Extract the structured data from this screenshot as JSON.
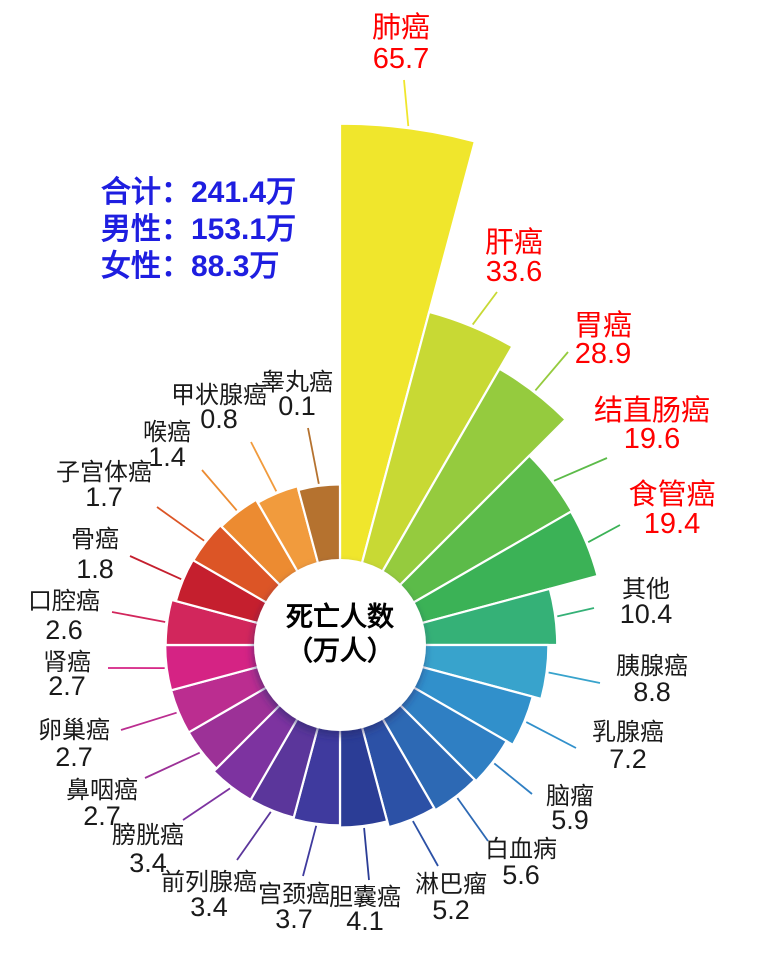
{
  "chart_data": {
    "type": "pie",
    "variant": "nightingale-rose",
    "title": "死亡人数（万人）",
    "center_label_lines": [
      "死亡人数",
      "（万人）"
    ],
    "unit": "万人",
    "legend_position": "none",
    "grid": false,
    "start_angle_deg": 0,
    "wedge_angle_deg": 15,
    "categories": [
      "肺癌",
      "肝癌",
      "胃癌",
      "结直肠癌",
      "食管癌",
      "其他",
      "胰腺癌",
      "乳腺癌",
      "脑瘤",
      "白血病",
      "淋巴瘤",
      "胆囊癌",
      "宫颈癌",
      "前列腺癌",
      "膀胱癌",
      "鼻咽癌",
      "卵巢癌",
      "肾癌",
      "口腔癌",
      "骨癌",
      "子宫体癌",
      "喉癌",
      "甲状腺癌",
      "睾丸癌"
    ],
    "values": [
      65.7,
      33.6,
      28.9,
      19.6,
      19.4,
      10.4,
      8.8,
      7.2,
      5.9,
      5.6,
      5.2,
      4.1,
      3.7,
      3.4,
      3.4,
      2.7,
      2.7,
      2.7,
      2.6,
      1.8,
      1.7,
      1.4,
      0.8,
      0.1
    ],
    "colors": [
      "#f0e62c",
      "#c8d934",
      "#95cb3e",
      "#5cbb49",
      "#3bb256",
      "#35b177",
      "#38a3cc",
      "#3190cb",
      "#2f7fc3",
      "#2d69b4",
      "#2c51a6",
      "#2b3d96",
      "#3f3a9e",
      "#5b369b",
      "#7d33a0",
      "#9c3197",
      "#bb2d90",
      "#d52384",
      "#d2265c",
      "#c51f2e",
      "#dc5526",
      "#ec8b31",
      "#f19b3d",
      "#b5722f"
    ],
    "highlighted": [
      "肺癌",
      "肝癌",
      "胃癌",
      "结直肠癌",
      "食管癌"
    ],
    "highlight_color": "#ff0000",
    "label_color": "#1a1a1a",
    "summary": {
      "color": "#1e1ee0",
      "lines": [
        {
          "label": "合计：",
          "value": "241.4万"
        },
        {
          "label": "男性：",
          "value": "153.1万"
        },
        {
          "label": "女性：",
          "value": "88.3万"
        }
      ]
    }
  }
}
